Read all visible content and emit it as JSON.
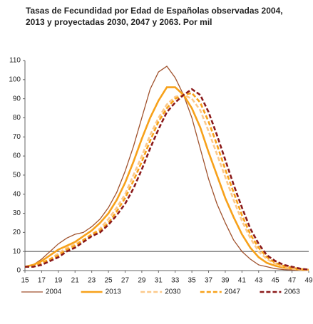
{
  "chart_data": {
    "type": "line",
    "title": [
      "Tasas de Fecundidad por Edad de Españolas observadas 2004,",
      "2013 y proyectadas 2030, 2047 y 2063. Por mil"
    ],
    "x": [
      15,
      16,
      17,
      18,
      19,
      20,
      21,
      22,
      23,
      24,
      25,
      26,
      27,
      28,
      29,
      30,
      31,
      32,
      33,
      34,
      35,
      36,
      37,
      38,
      39,
      40,
      41,
      42,
      43,
      44,
      45,
      46,
      47,
      48,
      49
    ],
    "series": [
      {
        "name": "2004",
        "color": "#a0522d",
        "dashed": false,
        "thick": false,
        "values": [
          2,
          3,
          6,
          10,
          14,
          17,
          19,
          20,
          23,
          27,
          33,
          41,
          52,
          65,
          80,
          95,
          104,
          107,
          101,
          92,
          80,
          64,
          48,
          35,
          25,
          16,
          10,
          6,
          3,
          2,
          1,
          0.5,
          0.3,
          0.2,
          0.1
        ]
      },
      {
        "name": "2013",
        "color": "#f7a11a",
        "dashed": false,
        "thick": true,
        "values": [
          2,
          3,
          5,
          8,
          11,
          13,
          15,
          18,
          21,
          25,
          30,
          37,
          46,
          57,
          69,
          80,
          89,
          96,
          96,
          92,
          85,
          75,
          62,
          50,
          38,
          28,
          19,
          12,
          7,
          4,
          2.5,
          1.5,
          1,
          0.5,
          0.3
        ]
      },
      {
        "name": "2030",
        "color": "#fcc98a",
        "dashed": true,
        "thick": true,
        "values": [
          2,
          2,
          4,
          6,
          9,
          12,
          14,
          16,
          19,
          22,
          27,
          33,
          40,
          50,
          60,
          71,
          80,
          87,
          91,
          92,
          90,
          84,
          73,
          61,
          49,
          37,
          26,
          17,
          10,
          6,
          3.5,
          2,
          1,
          0.6,
          0.3
        ]
      },
      {
        "name": "2047",
        "color": "#f7a11a",
        "dashed": true,
        "thick": true,
        "values": [
          2,
          2,
          4,
          6,
          8,
          11,
          13,
          16,
          19,
          21,
          25,
          31,
          38,
          47,
          57,
          68,
          78,
          85,
          90,
          92,
          93,
          88,
          78,
          66,
          53,
          41,
          29,
          19,
          12,
          7,
          4,
          2.5,
          1.5,
          0.8,
          0.4
        ]
      },
      {
        "name": "2063",
        "color": "#8b1a1a",
        "dashed": true,
        "thick": true,
        "values": [
          2,
          2,
          3,
          5,
          7,
          10,
          12,
          15,
          18,
          20,
          24,
          29,
          35,
          43,
          53,
          64,
          74,
          83,
          88,
          92,
          95,
          92,
          83,
          71,
          58,
          45,
          33,
          22,
          14,
          8,
          5,
          3,
          2,
          1,
          0.5
        ]
      }
    ],
    "xlim": [
      15,
      49
    ],
    "xticks": [
      15,
      17,
      19,
      21,
      23,
      25,
      27,
      29,
      31,
      33,
      35,
      37,
      39,
      41,
      43,
      45,
      47,
      49
    ],
    "ylim": [
      0,
      110
    ],
    "yticks": [
      0,
      10,
      20,
      30,
      40,
      50,
      60,
      70,
      80,
      90,
      100,
      110
    ],
    "hline": 10,
    "legend": "bottom"
  }
}
